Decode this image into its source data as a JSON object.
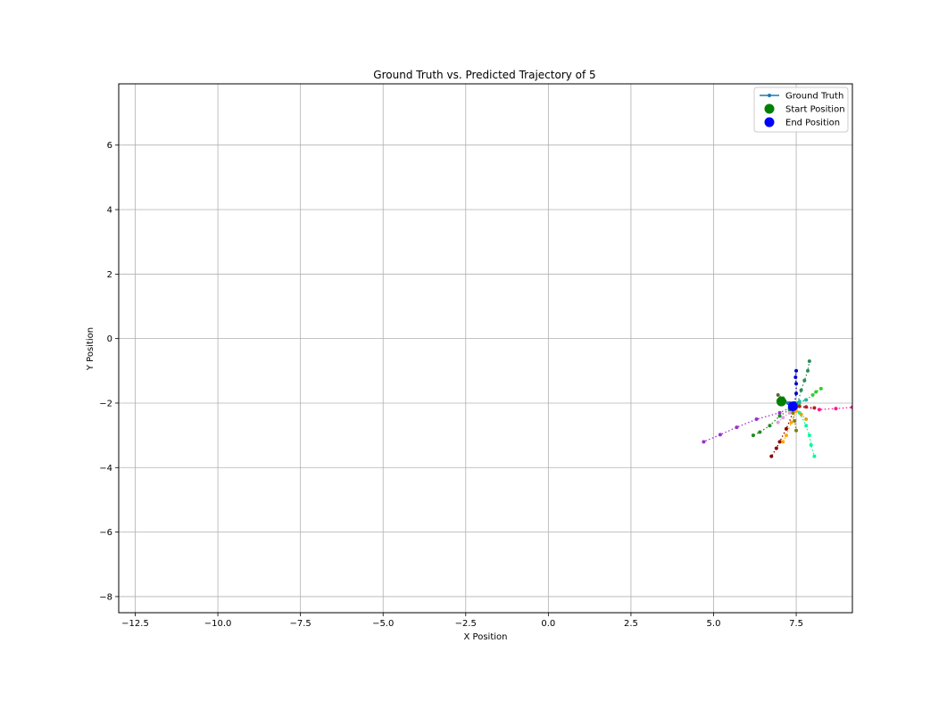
{
  "chart_data": {
    "type": "scatter",
    "title": "Ground Truth vs. Predicted Trajectory of 5",
    "xlabel": "X Position",
    "ylabel": "Y Position",
    "xlim": [
      -13.0,
      9.2
    ],
    "ylim": [
      -8.5,
      7.9
    ],
    "xticks": [
      -12.5,
      -10.0,
      -7.5,
      -5.0,
      -2.5,
      0.0,
      2.5,
      5.0,
      7.5
    ],
    "xtick_labels": [
      "−12.5",
      "−10.0",
      "−7.5",
      "−5.0",
      "−2.5",
      "0.0",
      "2.5",
      "5.0",
      "7.5"
    ],
    "yticks": [
      6,
      4,
      2,
      0,
      -2,
      -4,
      -6,
      -8
    ],
    "ytick_labels": [
      "6",
      "4",
      "2",
      "0",
      "−2",
      "−4",
      "−6",
      "−8"
    ],
    "grid": true,
    "legend_position": "top-right",
    "legend": [
      {
        "label": "Ground Truth",
        "kind": "line-marker",
        "color": "#1f77b4"
      },
      {
        "label": "Start Position",
        "kind": "circle",
        "color": "#008000"
      },
      {
        "label": "End Position",
        "kind": "circle",
        "color": "#0000ff"
      }
    ],
    "ground_truth": [
      [
        7.05,
        -1.95
      ],
      [
        7.15,
        -1.97
      ],
      [
        7.25,
        -2.0
      ],
      [
        7.35,
        -2.03
      ],
      [
        7.45,
        -2.07
      ]
    ],
    "start_position": [
      7.05,
      -1.95
    ],
    "end_position": [
      7.4,
      -2.1
    ],
    "predictions": [
      {
        "color": "#9932cc",
        "points": [
          [
            7.3,
            -2.15
          ],
          [
            7.0,
            -2.3
          ],
          [
            6.3,
            -2.5
          ],
          [
            5.7,
            -2.75
          ],
          [
            5.2,
            -2.98
          ],
          [
            4.7,
            -3.2
          ]
        ]
      },
      {
        "color": "#ff1493",
        "points": [
          [
            7.5,
            -2.1
          ],
          [
            8.2,
            -2.2
          ],
          [
            8.7,
            -2.17
          ],
          [
            9.2,
            -2.13
          ]
        ]
      },
      {
        "color": "#228b22",
        "points": [
          [
            7.3,
            -2.2
          ],
          [
            7.0,
            -2.4
          ],
          [
            6.7,
            -2.7
          ],
          [
            6.4,
            -2.9
          ],
          [
            6.2,
            -3.0
          ]
        ]
      },
      {
        "color": "#8b0000",
        "points": [
          [
            7.4,
            -2.3
          ],
          [
            7.2,
            -2.8
          ],
          [
            7.0,
            -3.2
          ],
          [
            6.9,
            -3.4
          ],
          [
            6.75,
            -3.65
          ]
        ]
      },
      {
        "color": "#ffa500",
        "points": [
          [
            7.5,
            -2.25
          ],
          [
            7.35,
            -2.6
          ],
          [
            7.2,
            -3.0
          ],
          [
            7.1,
            -3.2
          ]
        ]
      },
      {
        "color": "#00fa9a",
        "points": [
          [
            7.6,
            -2.3
          ],
          [
            7.8,
            -2.7
          ],
          [
            7.9,
            -3.0
          ],
          [
            7.95,
            -3.3
          ],
          [
            8.05,
            -3.65
          ]
        ]
      },
      {
        "color": "#2e8b57",
        "points": [
          [
            7.55,
            -2.0
          ],
          [
            7.65,
            -1.6
          ],
          [
            7.75,
            -1.3
          ],
          [
            7.85,
            -1.0
          ],
          [
            7.9,
            -0.7
          ]
        ]
      },
      {
        "color": "#0000cd",
        "points": [
          [
            7.45,
            -2.0
          ],
          [
            7.5,
            -1.7
          ],
          [
            7.5,
            -1.4
          ],
          [
            7.48,
            -1.2
          ],
          [
            7.5,
            -1.0
          ]
        ]
      },
      {
        "color": "#32cd32",
        "points": [
          [
            7.6,
            -2.0
          ],
          [
            7.8,
            -1.9
          ],
          [
            8.0,
            -1.75
          ],
          [
            8.1,
            -1.65
          ],
          [
            8.25,
            -1.55
          ]
        ]
      },
      {
        "color": "#556b2f",
        "points": [
          [
            7.3,
            -2.0
          ],
          [
            7.1,
            -1.85
          ],
          [
            6.95,
            -1.75
          ]
        ]
      },
      {
        "color": "#daa520",
        "points": [
          [
            7.5,
            -2.15
          ],
          [
            7.65,
            -2.35
          ],
          [
            7.8,
            -2.5
          ]
        ]
      },
      {
        "color": "#b22222",
        "points": [
          [
            7.6,
            -2.1
          ],
          [
            7.8,
            -2.12
          ],
          [
            8.05,
            -2.15
          ]
        ]
      },
      {
        "color": "#20b2aa",
        "points": [
          [
            7.4,
            -2.05
          ],
          [
            7.6,
            -1.95
          ],
          [
            7.8,
            -1.9
          ]
        ]
      },
      {
        "color": "#808000",
        "points": [
          [
            7.4,
            -2.3
          ],
          [
            7.45,
            -2.55
          ],
          [
            7.5,
            -2.85
          ]
        ]
      },
      {
        "color": "#dda0dd",
        "points": [
          [
            7.3,
            -2.3
          ],
          [
            7.1,
            -2.45
          ],
          [
            6.95,
            -2.6
          ]
        ]
      }
    ]
  }
}
